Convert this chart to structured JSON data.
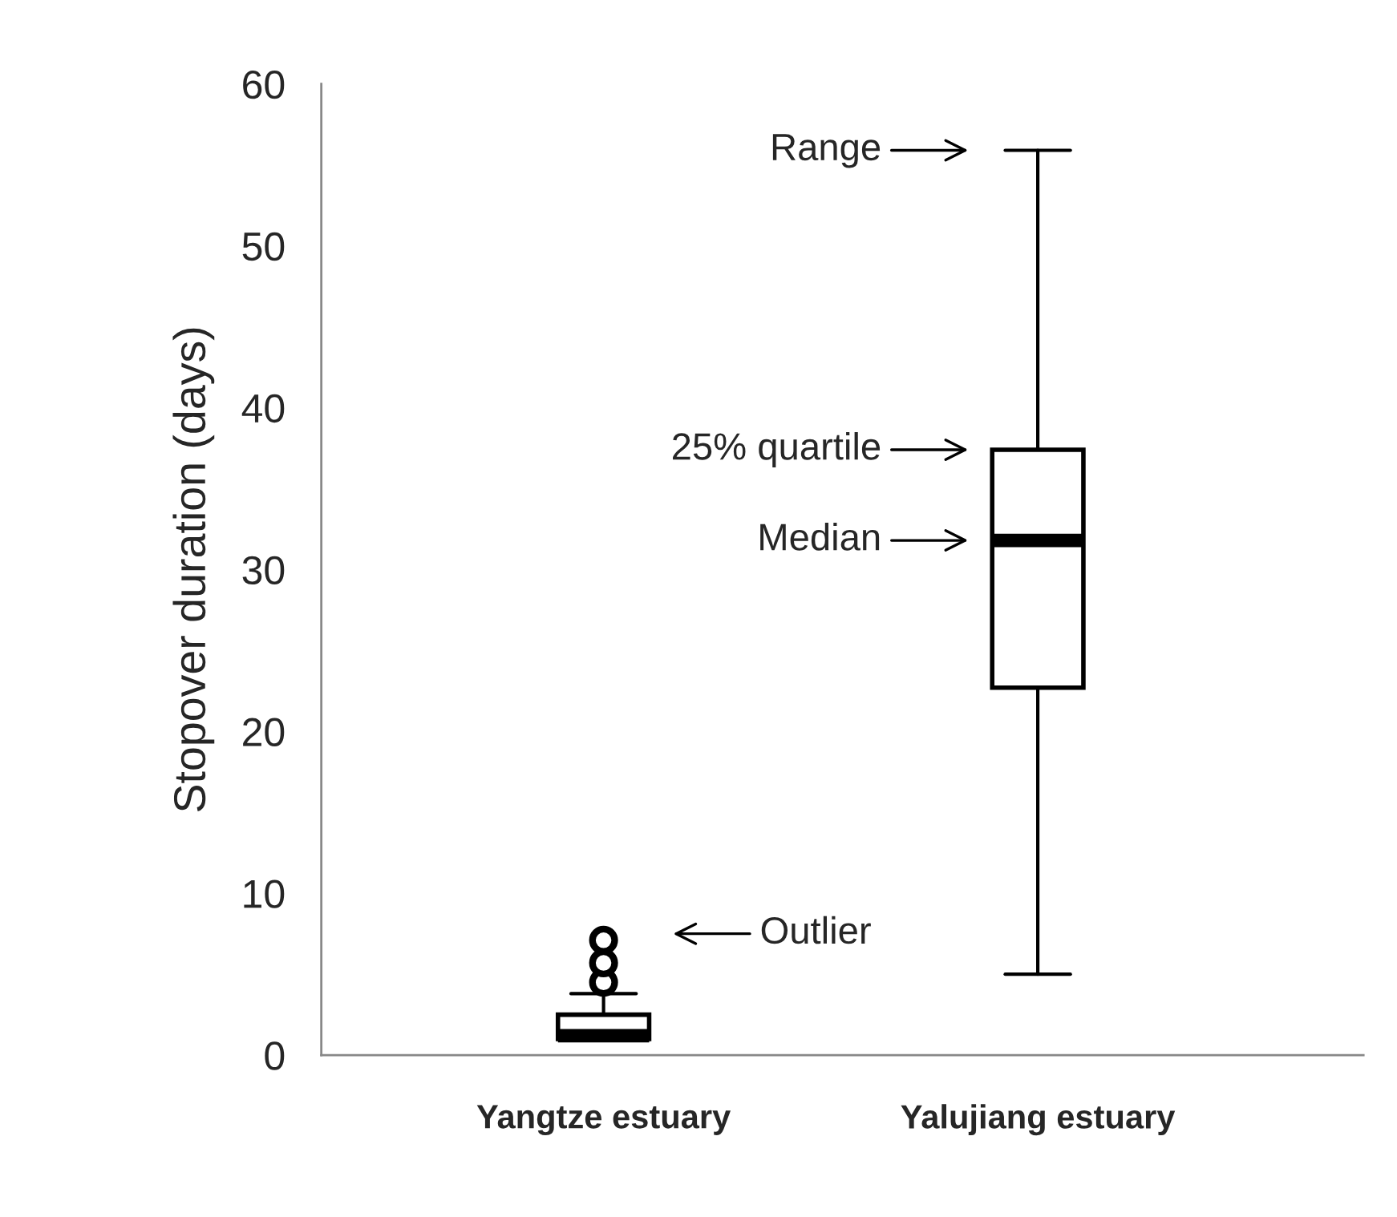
{
  "chart_data": {
    "type": "box",
    "ylabel": "Stopover duration (days)",
    "categories": [
      "Yangtze estuary",
      "Yalujiang estuary"
    ],
    "boxes": [
      {
        "low": 1.0,
        "q1": 1.0,
        "median": 1.2,
        "q3": 2.5,
        "high": 3.8,
        "outliers": [
          4.5,
          5.7,
          7.1
        ]
      },
      {
        "low": 5.0,
        "q1": 22.7,
        "median": 31.8,
        "q3": 37.4,
        "high": 55.9
      }
    ],
    "ylim": [
      0,
      60
    ],
    "yticks": [
      0,
      10,
      20,
      30,
      40,
      50,
      60
    ],
    "grid": false,
    "annotations": [
      "Range",
      "25% quartile",
      "Median",
      "Outlier"
    ]
  }
}
